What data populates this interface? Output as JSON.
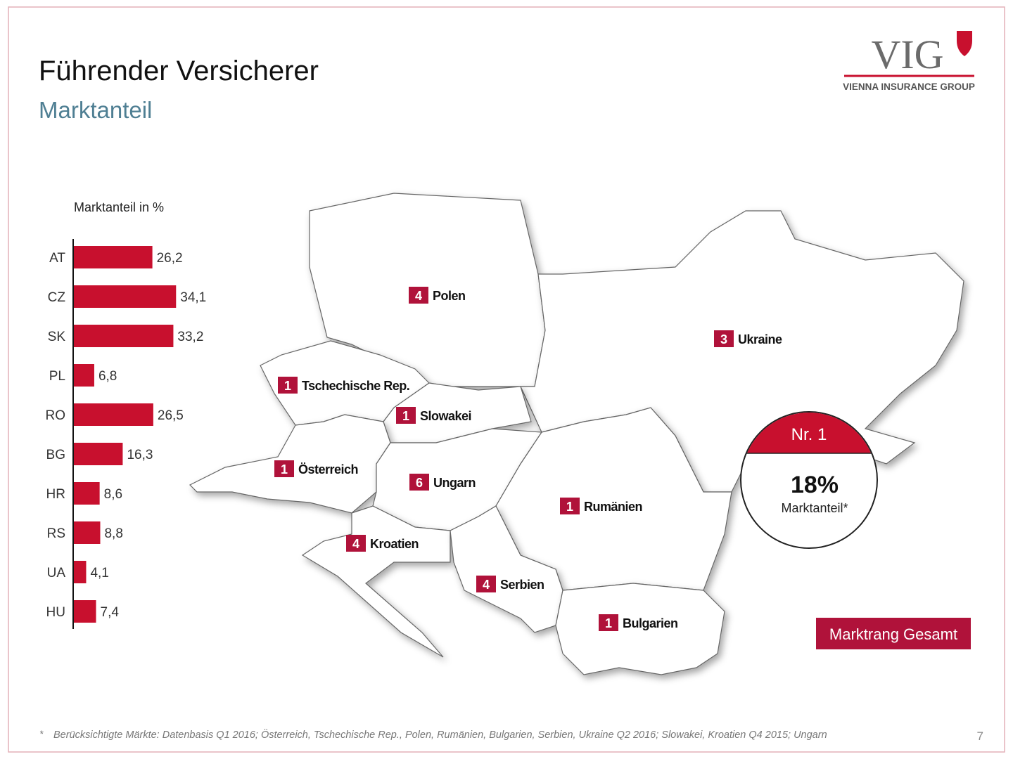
{
  "header": {
    "title": "Führender Versicherer",
    "subtitle": "Marktanteil"
  },
  "logo": {
    "mark": "VIG",
    "tagline": "VIENNA INSURANCE GROUP"
  },
  "chart_data": {
    "type": "hbar",
    "title": "Marktanteil in %",
    "categories": [
      "AT",
      "CZ",
      "SK",
      "PL",
      "RO",
      "BG",
      "HR",
      "RS",
      "UA",
      "HU"
    ],
    "values": [
      26.2,
      34.1,
      33.2,
      6.8,
      26.5,
      16.3,
      8.6,
      8.8,
      4.1,
      7.4
    ],
    "value_labels": [
      "26,2",
      "34,1",
      "33,2",
      "6,8",
      "26,5",
      "16,3",
      "8,6",
      "8,8",
      "4,1",
      "7,4"
    ],
    "color": "#c8102e"
  },
  "map": {
    "countries": [
      {
        "rank": "4",
        "name": "Polen"
      },
      {
        "rank": "3",
        "name": "Ukraine"
      },
      {
        "rank": "1",
        "name": "Tschechische Rep."
      },
      {
        "rank": "1",
        "name": "Slowakei"
      },
      {
        "rank": "1",
        "name": "Österreich"
      },
      {
        "rank": "6",
        "name": "Ungarn"
      },
      {
        "rank": "1",
        "name": "Rumänien"
      },
      {
        "rank": "4",
        "name": "Kroatien"
      },
      {
        "rank": "4",
        "name": "Serbien"
      },
      {
        "rank": "1",
        "name": "Bulgarien"
      }
    ]
  },
  "badge": {
    "rank": "Nr. 1",
    "value": "18%",
    "label": "Marktanteil*"
  },
  "button": "Marktrang Gesamt",
  "footnote": {
    "marker": "*",
    "text": "Berücksichtigte Märkte: Datenbasis Q1 2016; Österreich, Tschechische Rep., Polen, Rumänien, Bulgarien, Serbien, Ukraine Q2 2016; Slowakei, Kroatien Q4 2015; Ungarn"
  },
  "page_number": "7"
}
